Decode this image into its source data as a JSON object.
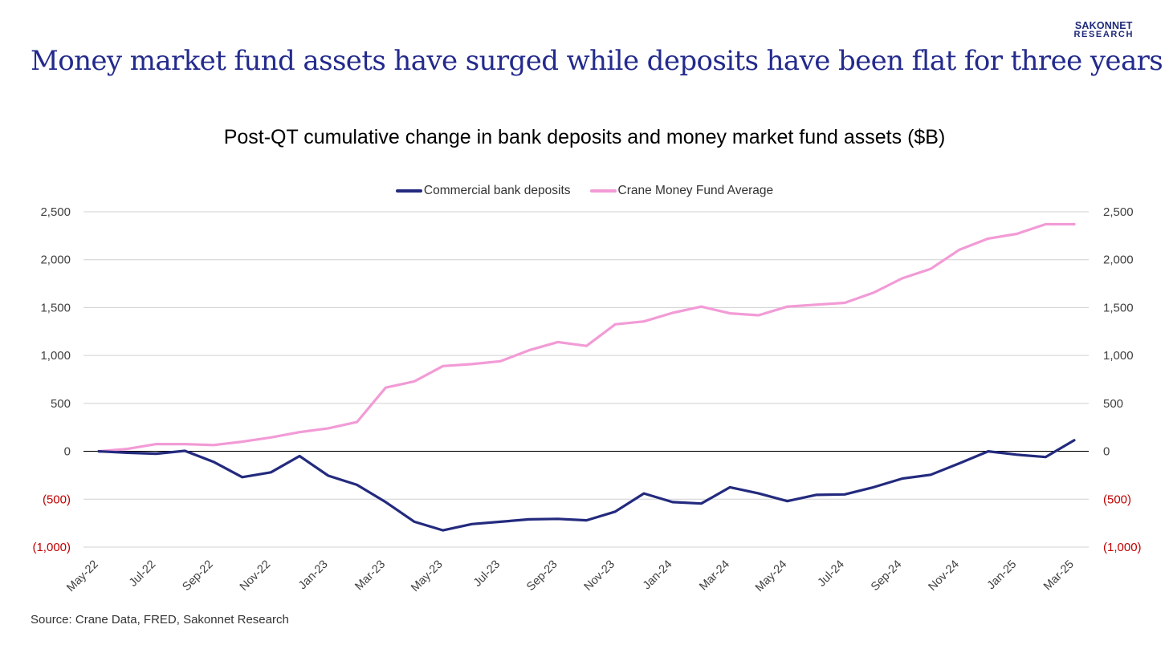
{
  "brand": {
    "line1": "SAKONNET",
    "line2": "RESEARCH"
  },
  "headline": "Money market fund assets have surged while deposits have been flat for three years",
  "source": "Source: Crane Data, FRED, Sakonnet Research",
  "colors": {
    "deposits": "#232a7e",
    "mmf": "#f29bd6",
    "negative_tick": "#c00000",
    "tick": "#404040",
    "grid": "#d0d0d0"
  },
  "chart_data": {
    "type": "line",
    "title": "Post-QT cumulative change in bank deposits and money market fund assets ($B)",
    "x": [
      "May-22",
      "Jun-22",
      "Jul-22",
      "Aug-22",
      "Sep-22",
      "Oct-22",
      "Nov-22",
      "Dec-22",
      "Jan-23",
      "Feb-23",
      "Mar-23",
      "Apr-23",
      "May-23",
      "Jun-23",
      "Jul-23",
      "Aug-23",
      "Sep-23",
      "Oct-23",
      "Nov-23",
      "Dec-23",
      "Jan-24",
      "Feb-24",
      "Mar-24",
      "Apr-24",
      "May-24",
      "Jun-24",
      "Jul-24",
      "Aug-24",
      "Sep-24",
      "Oct-24",
      "Nov-24",
      "Dec-24",
      "Jan-25",
      "Feb-25",
      "Mar-25"
    ],
    "x_tick_labels": [
      "May-22",
      "Jul-22",
      "Sep-22",
      "Nov-22",
      "Jan-23",
      "Mar-23",
      "May-23",
      "Jul-23",
      "Sep-23",
      "Nov-23",
      "Jan-24",
      "Mar-24",
      "May-24",
      "Jul-24",
      "Sep-24",
      "Nov-24",
      "Jan-25",
      "Mar-25"
    ],
    "series": [
      {
        "name": "Commercial bank deposits",
        "color": "#232a7e",
        "values": [
          0,
          -15,
          -25,
          5,
          -110,
          -270,
          -220,
          -50,
          -255,
          -350,
          -530,
          -735,
          -825,
          -760,
          -735,
          -710,
          -705,
          -720,
          -630,
          -440,
          -530,
          -545,
          -375,
          -440,
          -520,
          -455,
          -450,
          -375,
          -285,
          -245,
          -125,
          0,
          -35,
          -60,
          115
        ]
      },
      {
        "name": "Crane Money Fund Average",
        "color": "#f29bd6",
        "values": [
          0,
          25,
          75,
          75,
          65,
          100,
          145,
          200,
          240,
          305,
          665,
          730,
          890,
          910,
          940,
          1055,
          1140,
          1100,
          1325,
          1355,
          1445,
          1510,
          1440,
          1420,
          1510,
          1530,
          1550,
          1655,
          1805,
          1905,
          2105,
          2220,
          2270,
          2370,
          2370
        ]
      }
    ],
    "y_ticks": [
      "2,500",
      "2,000",
      "1,500",
      "1,000",
      "500",
      "0",
      "(500)",
      "(1,000)"
    ],
    "y_tick_values": [
      2500,
      2000,
      1500,
      1000,
      500,
      0,
      -500,
      -1000
    ],
    "ylim": [
      -1000,
      2500
    ],
    "y_axis": "both sides (mirrored)",
    "grid": true,
    "legend_position": "top-center"
  }
}
